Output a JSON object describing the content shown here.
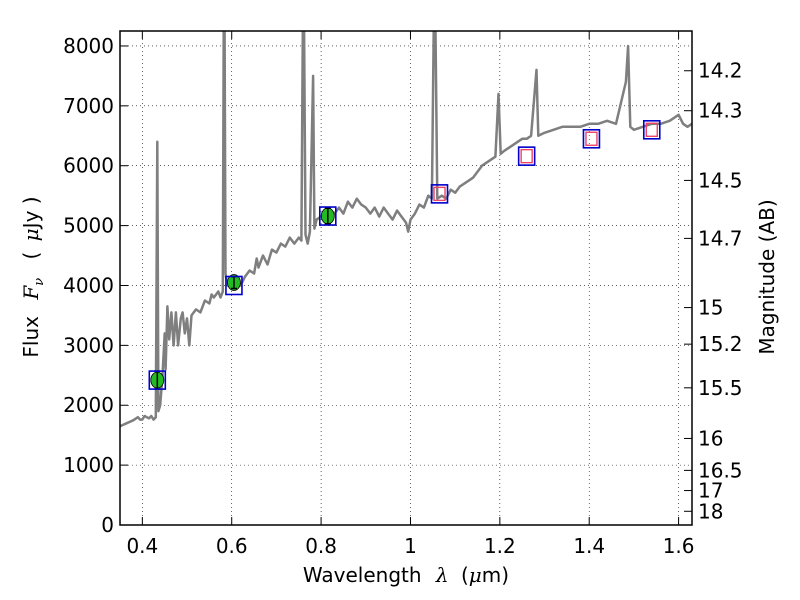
{
  "chart_data": {
    "type": "line",
    "xlabel": {
      "prefix": "Wavelength",
      "symbol": "λ",
      "unit_open": "(",
      "unit_mu": "μ",
      "unit_rest": "m)"
    },
    "ylabel": {
      "prefix": "Flux",
      "symbol": "F",
      "sub": "ν",
      "unit_open": "(",
      "unit_mu": "μ",
      "unit_rest": "Jy )"
    },
    "y2label": "Magnitude (AB)",
    "xlim": [
      0.35,
      1.63
    ],
    "ylim": [
      0,
      8250
    ],
    "xticks": [
      {
        "value": 0.4,
        "label": "0.4"
      },
      {
        "value": 0.6,
        "label": "0.6"
      },
      {
        "value": 0.8,
        "label": "0.8"
      },
      {
        "value": 1.0,
        "label": "1"
      },
      {
        "value": 1.2,
        "label": "1.2"
      },
      {
        "value": 1.4,
        "label": "1.4"
      },
      {
        "value": 1.6,
        "label": "1.6"
      }
    ],
    "yticks": [
      {
        "value": 0,
        "label": "0"
      },
      {
        "value": 1000,
        "label": "1000"
      },
      {
        "value": 2000,
        "label": "2000"
      },
      {
        "value": 3000,
        "label": "3000"
      },
      {
        "value": 4000,
        "label": "4000"
      },
      {
        "value": 5000,
        "label": "5000"
      },
      {
        "value": 6000,
        "label": "6000"
      },
      {
        "value": 7000,
        "label": "7000"
      },
      {
        "value": 8000,
        "label": "8000"
      }
    ],
    "y2ticks": [
      {
        "mag": 14.2,
        "label": "14.2"
      },
      {
        "mag": 14.3,
        "label": "14.3"
      },
      {
        "mag": 14.5,
        "label": "14.5"
      },
      {
        "mag": 14.7,
        "label": "14.7"
      },
      {
        "mag": 15,
        "label": "15"
      },
      {
        "mag": 15.2,
        "label": "15.2"
      },
      {
        "mag": 15.5,
        "label": "15.5"
      },
      {
        "mag": 16,
        "label": "16"
      },
      {
        "mag": 16.5,
        "label": "16.5"
      },
      {
        "mag": 17,
        "label": "17"
      },
      {
        "mag": 18,
        "label": "18"
      }
    ],
    "grid": true,
    "colors": {
      "spectrum": "#7f7f7f",
      "photometry_fill": "#22bb22",
      "model_box": "#0000cc",
      "nir_box": "#ee4466"
    },
    "series": [
      {
        "kind": "spectrum",
        "points": [
          [
            0.35,
            1650
          ],
          [
            0.365,
            1700
          ],
          [
            0.38,
            1750
          ],
          [
            0.39,
            1800
          ],
          [
            0.395,
            1760
          ],
          [
            0.4,
            1760
          ],
          [
            0.405,
            1820
          ],
          [
            0.41,
            1800
          ],
          [
            0.415,
            1780
          ],
          [
            0.42,
            1820
          ],
          [
            0.425,
            1760
          ],
          [
            0.43,
            1800
          ],
          [
            0.4335,
            6400
          ],
          [
            0.436,
            1900
          ],
          [
            0.44,
            2000
          ],
          [
            0.445,
            2500
          ],
          [
            0.45,
            3200
          ],
          [
            0.452,
            2600
          ],
          [
            0.456,
            3650
          ],
          [
            0.46,
            3100
          ],
          [
            0.465,
            3550
          ],
          [
            0.47,
            3000
          ],
          [
            0.475,
            3550
          ],
          [
            0.48,
            3000
          ],
          [
            0.486,
            3450
          ],
          [
            0.49,
            3550
          ],
          [
            0.495,
            3200
          ],
          [
            0.5,
            3450
          ],
          [
            0.505,
            3000
          ],
          [
            0.51,
            3500
          ],
          [
            0.52,
            3600
          ],
          [
            0.53,
            3550
          ],
          [
            0.54,
            3750
          ],
          [
            0.55,
            3700
          ],
          [
            0.555,
            3850
          ],
          [
            0.56,
            3800
          ],
          [
            0.565,
            3850
          ],
          [
            0.57,
            3900
          ],
          [
            0.575,
            3800
          ],
          [
            0.58,
            3900
          ],
          [
            0.582,
            8250
          ],
          [
            0.584,
            8250
          ],
          [
            0.586,
            4200
          ],
          [
            0.59,
            4000
          ],
          [
            0.6,
            4000
          ],
          [
            0.61,
            4100
          ],
          [
            0.62,
            4000
          ],
          [
            0.63,
            4150
          ],
          [
            0.64,
            4250
          ],
          [
            0.65,
            4200
          ],
          [
            0.656,
            4450
          ],
          [
            0.66,
            4300
          ],
          [
            0.67,
            4500
          ],
          [
            0.68,
            4350
          ],
          [
            0.69,
            4600
          ],
          [
            0.7,
            4550
          ],
          [
            0.71,
            4700
          ],
          [
            0.72,
            4650
          ],
          [
            0.73,
            4800
          ],
          [
            0.74,
            4700
          ],
          [
            0.75,
            4800
          ],
          [
            0.756,
            4750
          ],
          [
            0.759,
            8250
          ],
          [
            0.762,
            8250
          ],
          [
            0.765,
            4850
          ],
          [
            0.77,
            4700
          ],
          [
            0.775,
            4900
          ],
          [
            0.782,
            7500
          ],
          [
            0.785,
            4950
          ],
          [
            0.79,
            5100
          ],
          [
            0.8,
            5150
          ],
          [
            0.81,
            5200
          ],
          [
            0.82,
            5250
          ],
          [
            0.83,
            5200
          ],
          [
            0.84,
            5300
          ],
          [
            0.85,
            5200
          ],
          [
            0.86,
            5400
          ],
          [
            0.87,
            5300
          ],
          [
            0.88,
            5450
          ],
          [
            0.89,
            5350
          ],
          [
            0.9,
            5300
          ],
          [
            0.91,
            5200
          ],
          [
            0.92,
            5300
          ],
          [
            0.93,
            5150
          ],
          [
            0.94,
            5300
          ],
          [
            0.95,
            5200
          ],
          [
            0.96,
            5100
          ],
          [
            0.97,
            5250
          ],
          [
            0.98,
            5150
          ],
          [
            0.99,
            5050
          ],
          [
            0.995,
            4900
          ],
          [
            1.0,
            5100
          ],
          [
            1.01,
            5200
          ],
          [
            1.02,
            5350
          ],
          [
            1.03,
            5300
          ],
          [
            1.04,
            5500
          ],
          [
            1.048,
            5450
          ],
          [
            1.052,
            8250
          ],
          [
            1.056,
            8250
          ],
          [
            1.06,
            5450
          ],
          [
            1.07,
            5500
          ],
          [
            1.08,
            5450
          ],
          [
            1.09,
            5600
          ],
          [
            1.1,
            5550
          ],
          [
            1.11,
            5650
          ],
          [
            1.12,
            5700
          ],
          [
            1.13,
            5750
          ],
          [
            1.14,
            5800
          ],
          [
            1.15,
            5900
          ],
          [
            1.16,
            6000
          ],
          [
            1.17,
            6050
          ],
          [
            1.18,
            6100
          ],
          [
            1.19,
            6150
          ],
          [
            1.197,
            7200
          ],
          [
            1.202,
            6200
          ],
          [
            1.21,
            6250
          ],
          [
            1.22,
            6300
          ],
          [
            1.23,
            6350
          ],
          [
            1.24,
            6400
          ],
          [
            1.25,
            6450
          ],
          [
            1.26,
            6450
          ],
          [
            1.27,
            6500
          ],
          [
            1.282,
            7600
          ],
          [
            1.286,
            6500
          ],
          [
            1.3,
            6550
          ],
          [
            1.32,
            6600
          ],
          [
            1.34,
            6650
          ],
          [
            1.36,
            6650
          ],
          [
            1.38,
            6650
          ],
          [
            1.4,
            6700
          ],
          [
            1.42,
            6700
          ],
          [
            1.44,
            6750
          ],
          [
            1.46,
            6700
          ],
          [
            1.482,
            7400
          ],
          [
            1.487,
            8000
          ],
          [
            1.492,
            6650
          ],
          [
            1.5,
            6600
          ],
          [
            1.52,
            6650
          ],
          [
            1.54,
            6700
          ],
          [
            1.56,
            6700
          ],
          [
            1.58,
            6750
          ],
          [
            1.6,
            6850
          ],
          [
            1.61,
            6700
          ],
          [
            1.62,
            6650
          ],
          [
            1.63,
            6700
          ]
        ]
      },
      {
        "kind": "photometry",
        "points": [
          {
            "x": 0.4335,
            "y": 2420,
            "err": 150
          },
          {
            "x": 0.605,
            "y": 4050,
            "err": 100
          },
          {
            "x": 0.815,
            "y": 5160,
            "err": 130
          }
        ]
      },
      {
        "kind": "model_boxes",
        "points": [
          {
            "x": 0.4335,
            "y": 2420,
            "nir": false
          },
          {
            "x": 0.605,
            "y": 4000,
            "nir": false
          },
          {
            "x": 0.815,
            "y": 5160,
            "nir": false
          },
          {
            "x": 1.065,
            "y": 5530,
            "nir": true
          },
          {
            "x": 1.26,
            "y": 6160,
            "nir": true
          },
          {
            "x": 1.405,
            "y": 6450,
            "nir": true
          },
          {
            "x": 1.54,
            "y": 6600,
            "nir": true
          }
        ]
      }
    ]
  }
}
